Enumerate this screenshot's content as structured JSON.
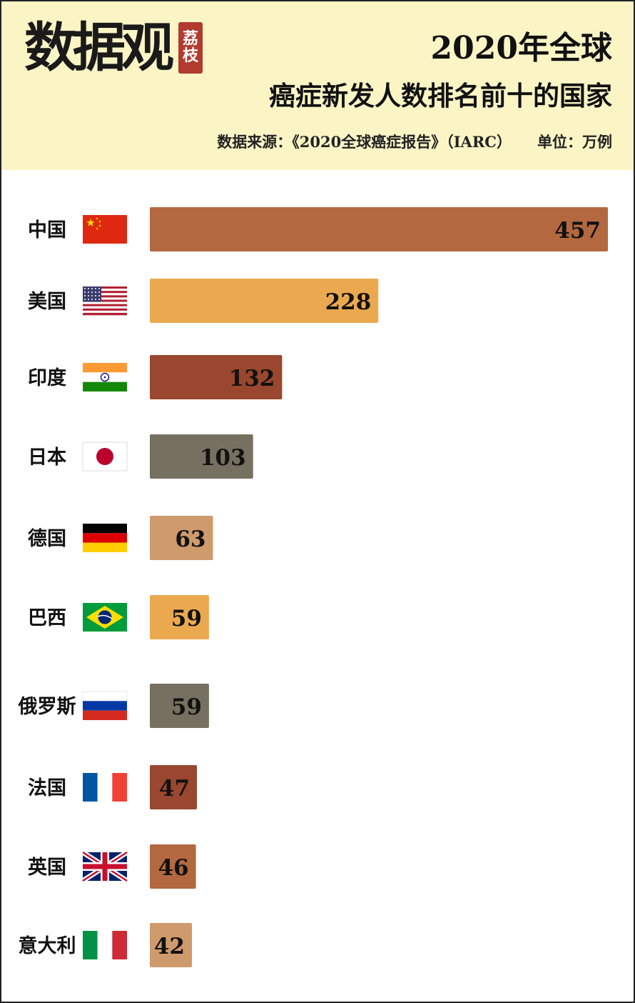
{
  "logo": {
    "text": "数据观",
    "badge_line1": "荔",
    "badge_line2": "枝"
  },
  "header": {
    "title_line1": "2020年全球",
    "title_line2": "癌症新发人数排名前十的国家",
    "source": "数据来源：《2020全球癌症报告》（IARC）",
    "unit": "单位：万例"
  },
  "colors": {
    "header_bg": "#fbf5c6",
    "bar_palette": [
      "#b3683f",
      "#eba94f",
      "#99472e",
      "#767060",
      "#cf9a6c"
    ]
  },
  "chart_data": {
    "type": "bar",
    "orientation": "horizontal",
    "categories": [
      "中国",
      "美国",
      "印度",
      "日本",
      "德国",
      "巴西",
      "俄罗斯",
      "法国",
      "英国",
      "意大利"
    ],
    "values": [
      457,
      228,
      132,
      103,
      63,
      59,
      59,
      47,
      46,
      42
    ],
    "bar_colors": [
      "#b3683f",
      "#eba94f",
      "#99472e",
      "#767060",
      "#cf9a6c",
      "#eba94f",
      "#767060",
      "#99472e",
      "#b3683f",
      "#cf9a6c"
    ],
    "flags": [
      "china-flag",
      "usa-flag",
      "india-flag",
      "japan-flag",
      "germany-flag",
      "brazil-flag",
      "russia-flag",
      "france-flag",
      "uk-flag",
      "italy-flag"
    ],
    "title": "2020年全球癌症新发人数排名前十的国家",
    "xlabel": "",
    "ylabel": "",
    "grid": false,
    "legend": "none"
  }
}
